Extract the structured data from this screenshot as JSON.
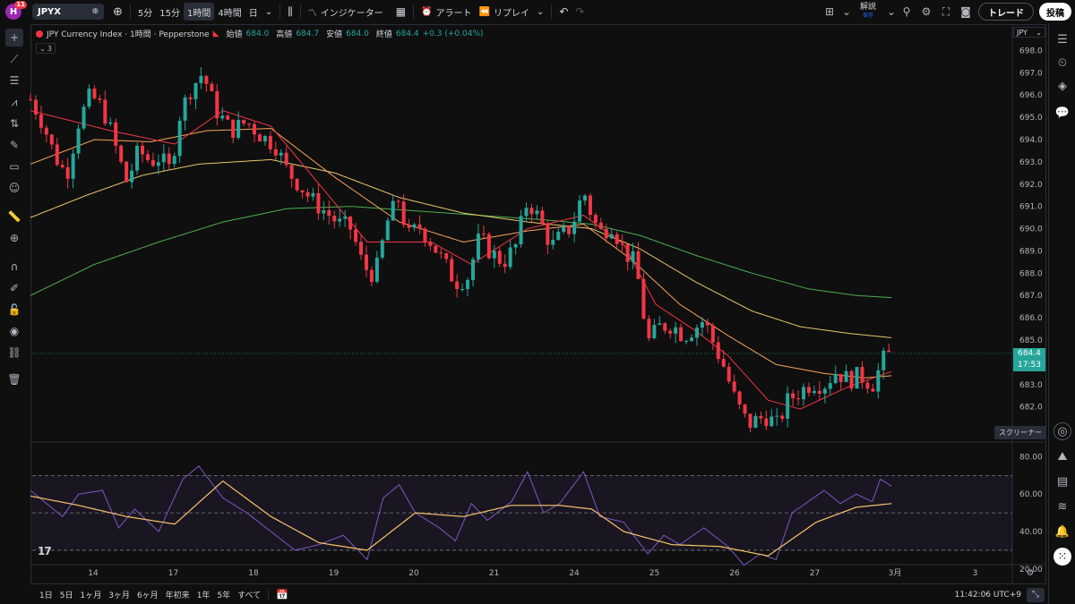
{
  "topbar": {
    "logo_letter": "H",
    "notifications": "11",
    "symbol": "JPYX",
    "intervals": [
      "5分",
      "15分",
      "1時間",
      "4時間",
      "日"
    ],
    "active_interval": "1時間",
    "indicators_label": "インジケーター",
    "alert_label": "アラート",
    "replay_label": "リプレイ",
    "analysis_label": "解説",
    "analysis_sub": "保存",
    "trade_label": "トレード",
    "post_label": "投稿"
  },
  "legend": {
    "title": "JPY Currency Index · 1時間 · Pepperstone",
    "open_label": "始値",
    "open": "684.0",
    "high_label": "高値",
    "high": "684.7",
    "low_label": "安値",
    "low": "684.0",
    "close_label": "終値",
    "close": "684.4",
    "change": "+0.3 (+0.04%)",
    "indicator_count": "3"
  },
  "currency_select": "JPY",
  "price_tag": {
    "price": "684.4",
    "countdown": "17:53"
  },
  "screener_tooltip": "スクリーナー",
  "tv_logo": "17",
  "bottombar": {
    "ranges": [
      "1日",
      "5日",
      "1ヶ月",
      "3ヶ月",
      "6ヶ月",
      "年初来",
      "1年",
      "5年",
      "すべて"
    ],
    "clock": "11:42:06 UTC+9"
  },
  "chart_data": {
    "type": "candlestick",
    "price_axis": {
      "min": 680.5,
      "max": 698.5,
      "ticks": [
        "698.0",
        "697.0",
        "696.0",
        "695.0",
        "694.0",
        "693.0",
        "692.0",
        "691.0",
        "690.0",
        "689.0",
        "688.0",
        "687.0",
        "686.0",
        "685.0",
        "684.0",
        "683.0",
        "682.0",
        "681.0"
      ]
    },
    "rsi_axis": {
      "min": 18,
      "max": 85,
      "ticks": [
        "80.00",
        "60.00",
        "40.00",
        "20.00"
      ],
      "bands": [
        70,
        50,
        30
      ]
    },
    "time_axis": [
      "14",
      "17",
      "18",
      "19",
      "20",
      "21",
      "24",
      "25",
      "26",
      "27",
      "3月",
      "3"
    ],
    "time_index": [
      0,
      1,
      2,
      3,
      4,
      5,
      6,
      7,
      8,
      9,
      10,
      11
    ],
    "last_price": 684.4,
    "colors": {
      "up": "#26a69a",
      "down": "#f23645",
      "ma_fast": "#f23645",
      "ma_mid": "#f7a35c",
      "ma_slow_yellow": "#e8c66a",
      "ma_green": "#4caf50",
      "rsi": "#7e57c2",
      "rsi_ma": "#f7c56a"
    },
    "close_path": [
      [
        0.0,
        695.8
      ],
      [
        0.15,
        694.8
      ],
      [
        0.3,
        693.3
      ],
      [
        0.45,
        692.4
      ],
      [
        0.6,
        694.8
      ],
      [
        0.75,
        696.0
      ],
      [
        0.9,
        695.4
      ],
      [
        1.0,
        694.4
      ],
      [
        1.1,
        693.2
      ],
      [
        1.2,
        692.1
      ],
      [
        1.35,
        693.5
      ],
      [
        1.5,
        693.0
      ],
      [
        1.6,
        693.2
      ],
      [
        1.75,
        692.6
      ],
      [
        1.85,
        695.0
      ],
      [
        2.0,
        696.3
      ],
      [
        2.15,
        697.0
      ],
      [
        2.3,
        695.4
      ],
      [
        2.5,
        694.4
      ],
      [
        2.7,
        694.8
      ],
      [
        2.9,
        694.1
      ],
      [
        3.05,
        693.8
      ],
      [
        3.2,
        692.6
      ],
      [
        3.35,
        692.0
      ],
      [
        3.5,
        691.3
      ],
      [
        3.7,
        690.7
      ],
      [
        3.85,
        690.2
      ],
      [
        4.0,
        690.0
      ],
      [
        4.15,
        688.3
      ],
      [
        4.3,
        687.9
      ],
      [
        4.45,
        690.3
      ],
      [
        4.6,
        691.4
      ],
      [
        4.7,
        689.6
      ],
      [
        4.85,
        690.1
      ],
      [
        5.0,
        689.4
      ],
      [
        5.15,
        688.5
      ],
      [
        5.3,
        687.6
      ],
      [
        5.45,
        687.8
      ],
      [
        5.6,
        689.6
      ],
      [
        5.75,
        688.9
      ],
      [
        5.9,
        688.5
      ],
      [
        6.05,
        689.2
      ],
      [
        6.2,
        691.3
      ],
      [
        6.35,
        690.4
      ],
      [
        6.5,
        689.2
      ],
      [
        6.6,
        689.6
      ],
      [
        6.75,
        690.1
      ],
      [
        6.9,
        691.7
      ],
      [
        7.0,
        690.6
      ],
      [
        7.1,
        689.8
      ],
      [
        7.25,
        690.2
      ],
      [
        7.4,
        689.0
      ],
      [
        7.55,
        688.4
      ],
      [
        7.7,
        684.9
      ],
      [
        7.85,
        685.6
      ],
      [
        8.0,
        685.7
      ],
      [
        8.15,
        685.2
      ],
      [
        8.3,
        685.6
      ],
      [
        8.4,
        685.9
      ],
      [
        8.55,
        684.6
      ],
      [
        8.65,
        683.8
      ],
      [
        8.8,
        682.2
      ],
      [
        8.95,
        681.2
      ],
      [
        9.05,
        681.4
      ],
      [
        9.2,
        681.6
      ],
      [
        9.3,
        681.1
      ],
      [
        9.45,
        682.3
      ],
      [
        9.6,
        682.7
      ],
      [
        9.75,
        683.1
      ],
      [
        9.9,
        683.0
      ],
      [
        10.05,
        683.6
      ],
      [
        10.2,
        683.2
      ],
      [
        10.35,
        683.4
      ],
      [
        10.5,
        683.0
      ],
      [
        10.65,
        684.2
      ],
      [
        10.75,
        684.4
      ]
    ],
    "ma_fast": [
      [
        0.0,
        695.3
      ],
      [
        1.0,
        694.4
      ],
      [
        1.8,
        693.8
      ],
      [
        2.4,
        695.3
      ],
      [
        3.0,
        694.6
      ],
      [
        3.6,
        692.0
      ],
      [
        4.2,
        689.4
      ],
      [
        5.0,
        689.4
      ],
      [
        5.5,
        688.4
      ],
      [
        6.2,
        690.0
      ],
      [
        6.9,
        690.6
      ],
      [
        7.4,
        689.3
      ],
      [
        7.8,
        686.6
      ],
      [
        8.3,
        685.4
      ],
      [
        8.7,
        684.3
      ],
      [
        9.2,
        682.3
      ],
      [
        9.6,
        681.9
      ],
      [
        10.2,
        682.9
      ],
      [
        10.75,
        683.6
      ]
    ],
    "ma_mid": [
      [
        0.0,
        692.9
      ],
      [
        0.8,
        694.0
      ],
      [
        1.5,
        693.9
      ],
      [
        2.2,
        694.4
      ],
      [
        3.0,
        694.5
      ],
      [
        3.8,
        692.3
      ],
      [
        4.6,
        690.3
      ],
      [
        5.4,
        689.4
      ],
      [
        6.2,
        689.9
      ],
      [
        6.9,
        690.2
      ],
      [
        7.5,
        688.6
      ],
      [
        8.1,
        686.6
      ],
      [
        8.7,
        685.2
      ],
      [
        9.3,
        683.9
      ],
      [
        9.9,
        683.5
      ],
      [
        10.4,
        683.3
      ],
      [
        10.75,
        683.4
      ]
    ],
    "ma_yellow": [
      [
        0.0,
        690.5
      ],
      [
        0.7,
        691.5
      ],
      [
        1.4,
        692.4
      ],
      [
        2.1,
        692.9
      ],
      [
        3.0,
        693.1
      ],
      [
        3.8,
        692.5
      ],
      [
        4.6,
        691.4
      ],
      [
        5.4,
        690.7
      ],
      [
        6.2,
        690.3
      ],
      [
        7.0,
        690.0
      ],
      [
        7.6,
        689.1
      ],
      [
        8.3,
        687.6
      ],
      [
        9.0,
        686.3
      ],
      [
        9.6,
        685.6
      ],
      [
        10.2,
        685.3
      ],
      [
        10.75,
        685.1
      ]
    ],
    "ma_green": [
      [
        0.0,
        687.0
      ],
      [
        0.8,
        688.4
      ],
      [
        1.6,
        689.4
      ],
      [
        2.4,
        690.3
      ],
      [
        3.2,
        690.9
      ],
      [
        4.0,
        691.0
      ],
      [
        4.8,
        690.8
      ],
      [
        5.6,
        690.6
      ],
      [
        6.4,
        690.4
      ],
      [
        7.0,
        690.2
      ],
      [
        7.6,
        689.7
      ],
      [
        8.3,
        688.8
      ],
      [
        9.0,
        688.0
      ],
      [
        9.7,
        687.3
      ],
      [
        10.3,
        687.0
      ],
      [
        10.75,
        686.9
      ]
    ],
    "rsi": [
      [
        0.0,
        62
      ],
      [
        0.2,
        55
      ],
      [
        0.4,
        48
      ],
      [
        0.6,
        60
      ],
      [
        0.9,
        62
      ],
      [
        1.1,
        42
      ],
      [
        1.3,
        52
      ],
      [
        1.6,
        40
      ],
      [
        1.9,
        68
      ],
      [
        2.1,
        75
      ],
      [
        2.4,
        58
      ],
      [
        2.7,
        50
      ],
      [
        3.0,
        40
      ],
      [
        3.3,
        30
      ],
      [
        3.6,
        33
      ],
      [
        3.9,
        38
      ],
      [
        4.2,
        25
      ],
      [
        4.4,
        58
      ],
      [
        4.6,
        65
      ],
      [
        4.8,
        50
      ],
      [
        5.1,
        42
      ],
      [
        5.3,
        35
      ],
      [
        5.5,
        55
      ],
      [
        5.7,
        46
      ],
      [
        6.0,
        56
      ],
      [
        6.2,
        72
      ],
      [
        6.4,
        50
      ],
      [
        6.6,
        55
      ],
      [
        6.9,
        72
      ],
      [
        7.1,
        48
      ],
      [
        7.4,
        45
      ],
      [
        7.7,
        28
      ],
      [
        7.9,
        38
      ],
      [
        8.1,
        33
      ],
      [
        8.4,
        42
      ],
      [
        8.7,
        32
      ],
      [
        8.9,
        22
      ],
      [
        9.1,
        28
      ],
      [
        9.3,
        25
      ],
      [
        9.5,
        50
      ],
      [
        9.7,
        56
      ],
      [
        9.9,
        62
      ],
      [
        10.1,
        55
      ],
      [
        10.3,
        60
      ],
      [
        10.5,
        56
      ],
      [
        10.6,
        68
      ],
      [
        10.75,
        64
      ]
    ],
    "rsi_ma": [
      [
        0.0,
        59
      ],
      [
        0.6,
        54
      ],
      [
        1.2,
        48
      ],
      [
        1.8,
        44
      ],
      [
        2.4,
        67
      ],
      [
        3.0,
        48
      ],
      [
        3.6,
        34
      ],
      [
        4.2,
        30
      ],
      [
        4.8,
        50
      ],
      [
        5.4,
        48
      ],
      [
        6.0,
        54
      ],
      [
        6.6,
        54
      ],
      [
        7.0,
        52
      ],
      [
        7.4,
        40
      ],
      [
        8.0,
        33
      ],
      [
        8.6,
        32
      ],
      [
        9.2,
        27
      ],
      [
        9.8,
        45
      ],
      [
        10.3,
        53
      ],
      [
        10.75,
        55
      ]
    ]
  }
}
